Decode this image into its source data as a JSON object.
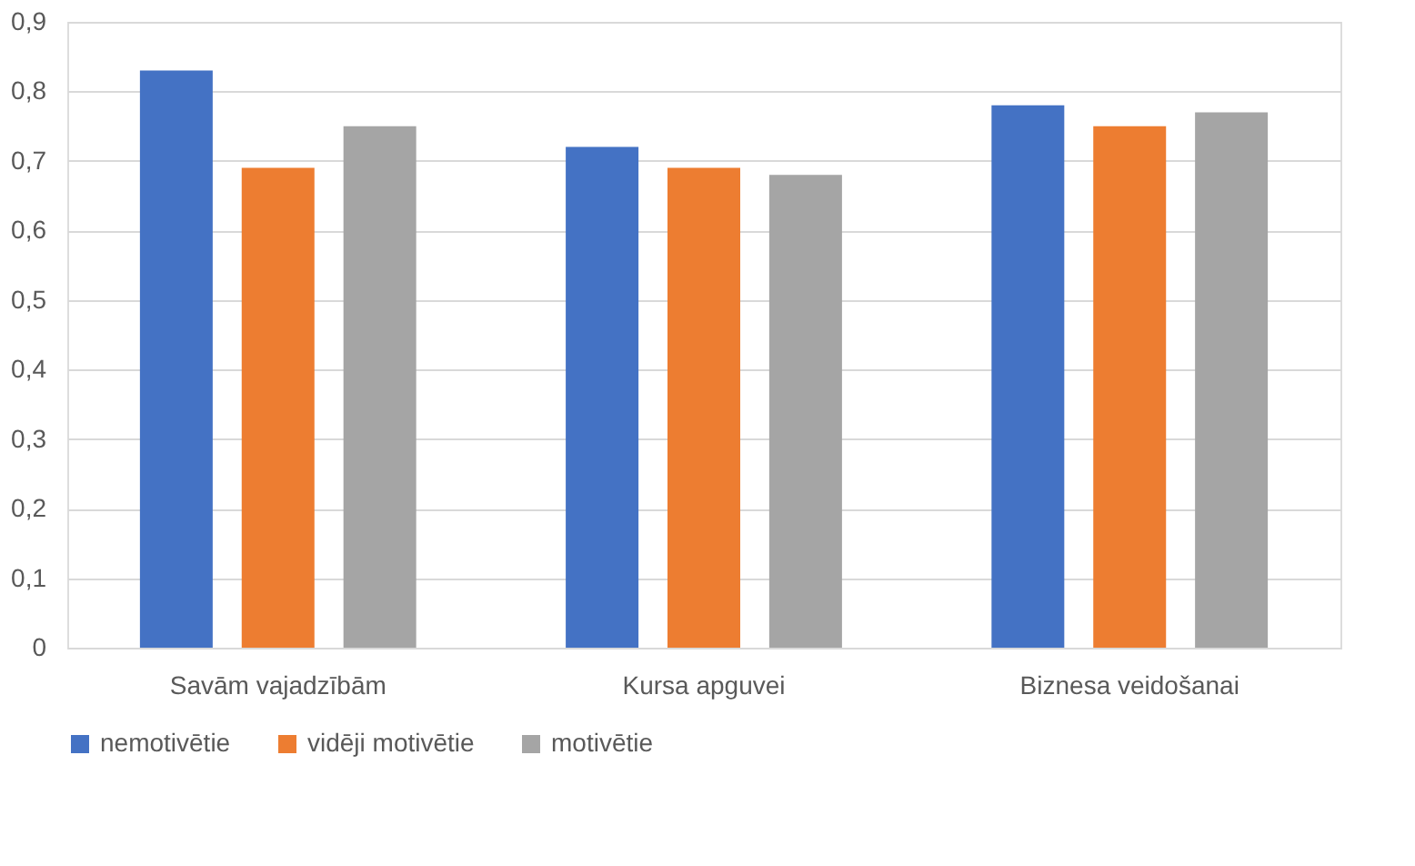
{
  "chart_data": {
    "type": "bar",
    "categories": [
      "Savām vajadzībām",
      "Kursa apguvei",
      "Biznesa veidošanai"
    ],
    "series": [
      {
        "name": "nemotivētie",
        "color": "#4472c4",
        "values": [
          0.83,
          0.72,
          0.78
        ]
      },
      {
        "name": "vidēji motivētie",
        "color": "#ed7d31",
        "values": [
          0.69,
          0.69,
          0.75
        ]
      },
      {
        "name": "motivētie",
        "color": "#a5a5a5",
        "values": [
          0.75,
          0.68,
          0.77
        ]
      }
    ],
    "ylim": [
      0,
      0.9
    ],
    "yticks": [
      {
        "value": 0,
        "label": "0"
      },
      {
        "value": 0.1,
        "label": "0,1"
      },
      {
        "value": 0.2,
        "label": "0,2"
      },
      {
        "value": 0.3,
        "label": "0,3"
      },
      {
        "value": 0.4,
        "label": "0,4"
      },
      {
        "value": 0.5,
        "label": "0,5"
      },
      {
        "value": 0.6,
        "label": "0,6"
      },
      {
        "value": 0.7,
        "label": "0,7"
      },
      {
        "value": 0.8,
        "label": "0,8"
      },
      {
        "value": 0.9,
        "label": "0,9"
      }
    ],
    "grid": "y",
    "legend": "bottom"
  }
}
